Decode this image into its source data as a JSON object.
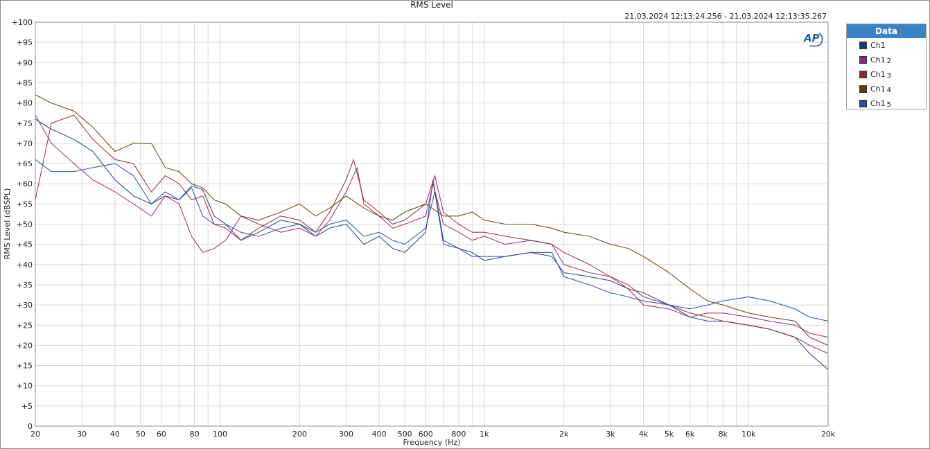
{
  "chart_data": {
    "type": "line",
    "title": "RMS Level",
    "date_range": "21.03.2024 12:13:24.256 - 21.03.2024 12:13:35.267",
    "xlabel": "Frequency (Hz)",
    "ylabel": "RMS Level (dBSPL)",
    "x_scale": "log",
    "xlim": [
      20,
      20000
    ],
    "ylim": [
      0,
      100
    ],
    "grid": true,
    "x_ticks": [
      {
        "value": 20,
        "label": "20"
      },
      {
        "value": 30,
        "label": "30"
      },
      {
        "value": 40,
        "label": "40"
      },
      {
        "value": 50,
        "label": "50"
      },
      {
        "value": 60,
        "label": "60"
      },
      {
        "value": 80,
        "label": "80"
      },
      {
        "value": 100,
        "label": "100"
      },
      {
        "value": 200,
        "label": "200"
      },
      {
        "value": 300,
        "label": "300"
      },
      {
        "value": 400,
        "label": "400"
      },
      {
        "value": 500,
        "label": "500"
      },
      {
        "value": 600,
        "label": "600"
      },
      {
        "value": 800,
        "label": "800"
      },
      {
        "value": 1000,
        "label": "1k"
      },
      {
        "value": 2000,
        "label": "2k"
      },
      {
        "value": 3000,
        "label": "3k"
      },
      {
        "value": 4000,
        "label": "4k"
      },
      {
        "value": 5000,
        "label": "5k"
      },
      {
        "value": 6000,
        "label": "6k"
      },
      {
        "value": 8000,
        "label": "8k"
      },
      {
        "value": 10000,
        "label": "10k"
      },
      {
        "value": 20000,
        "label": "20k"
      }
    ],
    "y_ticks": [
      {
        "value": 100,
        "label": "+100"
      },
      {
        "value": 95,
        "label": "+95"
      },
      {
        "value": 90,
        "label": "+90"
      },
      {
        "value": 85,
        "label": "+85"
      },
      {
        "value": 80,
        "label": "+80"
      },
      {
        "value": 75,
        "label": "+75"
      },
      {
        "value": 70,
        "label": "+70"
      },
      {
        "value": 65,
        "label": "+65"
      },
      {
        "value": 60,
        "label": "+60"
      },
      {
        "value": 55,
        "label": "+55"
      },
      {
        "value": 50,
        "label": "+50"
      },
      {
        "value": 45,
        "label": "+45"
      },
      {
        "value": 40,
        "label": "+40"
      },
      {
        "value": 35,
        "label": "+35"
      },
      {
        "value": 30,
        "label": "+30"
      },
      {
        "value": 25,
        "label": "+25"
      },
      {
        "value": 20,
        "label": "+20"
      },
      {
        "value": 15,
        "label": "+15"
      },
      {
        "value": 10,
        "label": "+10"
      },
      {
        "value": 5,
        "label": "+5"
      },
      {
        "value": 0,
        "label": "0"
      }
    ],
    "legend": {
      "title": "Data",
      "position": "right"
    },
    "series": [
      {
        "name": "Ch1",
        "sub": "",
        "color": "#1f3a7a",
        "x": [
          20,
          23,
          28,
          33,
          40,
          47,
          55,
          62,
          70,
          78,
          86,
          95,
          105,
          120,
          140,
          170,
          200,
          230,
          260,
          300,
          350,
          400,
          450,
          500,
          600,
          640,
          700,
          800,
          900,
          1000,
          1200,
          1500,
          1800,
          2000,
          2500,
          3000,
          3500,
          4000,
          5000,
          6000,
          7000,
          8000,
          10000,
          12000,
          15000,
          17000,
          20000
        ],
        "y": [
          76,
          73.5,
          71,
          68,
          61,
          57,
          55,
          57,
          56,
          59.5,
          58.5,
          52,
          50,
          46,
          48,
          51,
          50,
          47,
          49,
          50,
          45,
          47,
          44,
          43,
          48,
          61,
          46,
          44,
          43,
          41,
          42,
          43,
          42,
          38,
          37,
          36,
          34,
          33,
          30,
          27,
          26,
          26,
          25,
          24,
          22,
          18,
          14
        ]
      },
      {
        "name": "Ch1",
        "sub": "2",
        "color": "#8e2a6f",
        "x": [
          20,
          23,
          28,
          33,
          40,
          47,
          55,
          62,
          70,
          78,
          86,
          95,
          105,
          120,
          140,
          170,
          200,
          230,
          260,
          300,
          330,
          350,
          400,
          450,
          500,
          600,
          640,
          700,
          800,
          900,
          1000,
          1200,
          1500,
          1800,
          2000,
          2500,
          3000,
          3500,
          4000,
          5000,
          6000,
          7000,
          8000,
          10000,
          12000,
          15000,
          17000,
          20000
        ],
        "y": [
          77,
          70,
          65,
          61,
          58,
          55,
          52,
          57,
          55,
          47,
          43,
          44,
          46,
          52,
          50,
          48,
          49,
          47,
          51,
          58,
          64,
          55,
          52,
          49,
          50,
          52,
          60,
          50,
          48,
          46,
          47,
          45,
          46,
          45,
          40,
          38,
          37,
          34,
          30,
          29,
          27,
          28,
          28,
          27,
          26,
          25,
          23,
          22
        ]
      },
      {
        "name": "Ch1",
        "sub": "3",
        "color": "#8b2a34",
        "x": [
          20,
          23,
          28,
          33,
          40,
          47,
          55,
          62,
          70,
          78,
          86,
          95,
          105,
          120,
          140,
          170,
          200,
          230,
          260,
          300,
          320,
          350,
          400,
          450,
          500,
          600,
          650,
          700,
          800,
          900,
          1000,
          1200,
          1500,
          1800,
          2000,
          2500,
          3000,
          3500,
          4000,
          5000,
          6000,
          7000,
          8000,
          10000,
          12000,
          15000,
          17000,
          20000
        ],
        "y": [
          56,
          75,
          77,
          71,
          66,
          65,
          58,
          62,
          60,
          56,
          57,
          50,
          49,
          46,
          49,
          52,
          51,
          48,
          53,
          61,
          66,
          56,
          53,
          50,
          51,
          55,
          62,
          53,
          50,
          48,
          48,
          47,
          46,
          45,
          43,
          40,
          37,
          35,
          32,
          30,
          28,
          27,
          26,
          25,
          24,
          22,
          20,
          18
        ]
      },
      {
        "name": "Ch1",
        "sub": "4",
        "color": "#5a3b10",
        "x": [
          20,
          23,
          28,
          33,
          40,
          47,
          55,
          62,
          70,
          78,
          86,
          95,
          105,
          120,
          140,
          170,
          200,
          230,
          260,
          300,
          350,
          400,
          450,
          500,
          600,
          700,
          800,
          900,
          1000,
          1200,
          1500,
          1800,
          2000,
          2500,
          3000,
          3500,
          4000,
          5000,
          6000,
          7000,
          8000,
          10000,
          12000,
          15000,
          17000,
          20000
        ],
        "y": [
          82,
          80,
          78,
          74,
          68,
          70,
          70,
          64,
          63,
          60,
          59,
          56,
          55,
          52,
          51,
          53,
          55,
          52,
          54,
          57,
          54,
          52,
          51,
          53,
          55,
          52,
          52,
          53,
          51,
          50,
          50,
          49,
          48,
          47,
          45,
          44,
          42,
          38,
          34,
          31,
          30,
          28,
          27,
          26,
          22,
          20
        ]
      },
      {
        "name": "Ch1",
        "sub": "5",
        "color": "#2a4a9a",
        "x": [
          20,
          23,
          28,
          33,
          40,
          47,
          55,
          62,
          70,
          78,
          86,
          95,
          105,
          120,
          140,
          170,
          200,
          230,
          260,
          300,
          350,
          400,
          450,
          500,
          600,
          650,
          700,
          800,
          900,
          1000,
          1200,
          1500,
          1800,
          2000,
          2500,
          3000,
          3500,
          4000,
          5000,
          6000,
          7000,
          8000,
          10000,
          12000,
          15000,
          17000,
          20000
        ],
        "y": [
          66,
          63,
          63,
          64,
          65,
          62,
          55,
          58,
          56,
          59,
          52,
          50,
          50,
          48,
          47,
          49,
          50,
          48,
          50,
          51,
          47,
          48,
          46,
          45,
          49,
          58,
          45,
          44,
          42,
          42,
          42,
          43,
          43,
          37,
          35,
          33,
          32,
          31,
          30,
          29,
          30,
          31,
          32,
          31,
          29,
          27,
          26
        ]
      }
    ]
  }
}
